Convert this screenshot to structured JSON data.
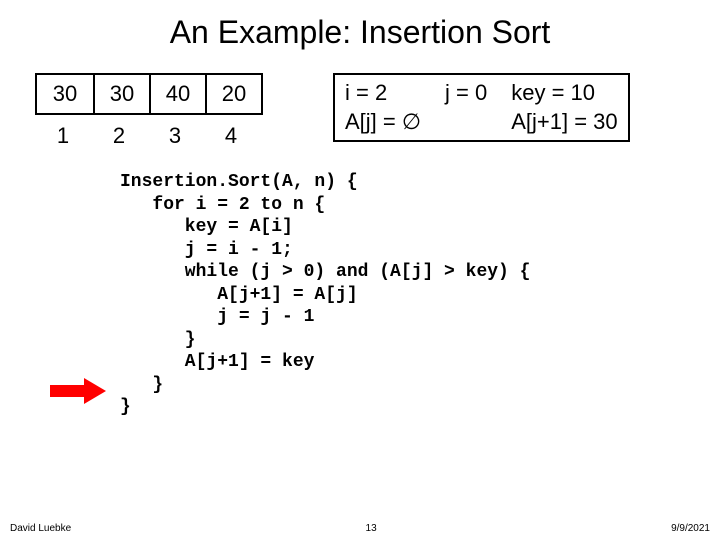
{
  "title": "An Example: Insertion Sort",
  "array": {
    "cells": [
      "30",
      "30",
      "40",
      "20"
    ],
    "indices": [
      "1",
      "2",
      "3",
      "4"
    ]
  },
  "state": {
    "i_label": "i = 2",
    "j_label": "j = 0",
    "key_label": "key = 10",
    "aj_label": "A[j] = ∅",
    "ajp1_label": "A[j+1] = 30"
  },
  "code": "Insertion.Sort(A, n) {\n   for i = 2 to n {\n      key = A[i]\n      j = i - 1;\n      while (j > 0) and (A[j] > key) {\n         A[j+1] = A[j]\n         j = j - 1\n      }\n      A[j+1] = key\n   }\n}",
  "footer": {
    "author": "David Luebke",
    "page": "13",
    "date": "9/9/2021"
  },
  "colors": {
    "arrow": "#ff0000",
    "border": "#000000",
    "background": "#ffffff"
  }
}
